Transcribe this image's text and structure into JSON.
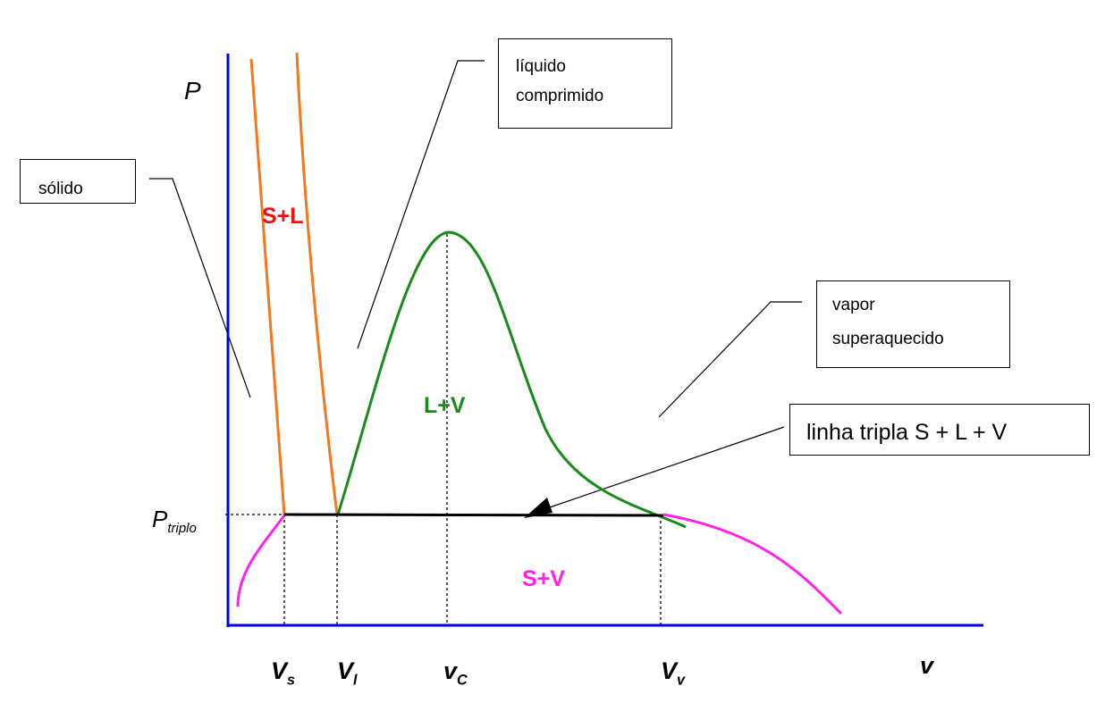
{
  "axes": {
    "y_label": "P",
    "x_label": "v",
    "p_triple_label": {
      "main": "P",
      "sub": "triplo"
    }
  },
  "x_ticks": [
    {
      "main": "V",
      "sub": "s"
    },
    {
      "main": "V",
      "sub": "l"
    },
    {
      "main": "v",
      "sub": "C"
    },
    {
      "main": "V",
      "sub": "v"
    }
  ],
  "regions": {
    "solid_liquid": "S+L",
    "liquid_vapor": "L+V",
    "solid_vapor": "S+V"
  },
  "callouts": {
    "solid": "sólido",
    "compressed_liquid": [
      "líquido",
      "comprimido"
    ],
    "superheated_vapor": [
      "vapor",
      "superaquecido"
    ],
    "triple_line": "linha tripla S + L + V"
  },
  "colors": {
    "axes": "#0000ee",
    "solid_liquid_lines": "#f07820",
    "saturation_dome": "#1a8a1a",
    "sublimation_curve": "#ff22ee",
    "solid_liquid_label": "#ee1111",
    "triple_line": "#000000"
  }
}
